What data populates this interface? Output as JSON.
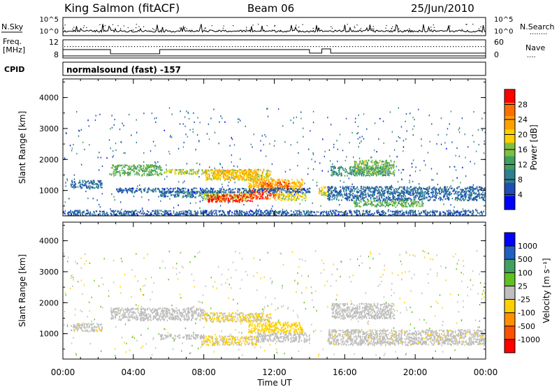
{
  "header": {
    "station": "King Salmon (fitACF)",
    "beam": "Beam 06",
    "date": "25/Jun/2010"
  },
  "noise_panel": {
    "left_label": "N.Sky",
    "left_ticks": [
      "10^5",
      "10^0"
    ],
    "right_ticks": [
      "10^5",
      "10^0"
    ],
    "right_label": "N.Search",
    "right_dots": "........"
  },
  "freq_panel": {
    "left_label_1": "Freq.",
    "left_label_2": "[MHz]",
    "left_ticks": [
      "12",
      "8"
    ],
    "right_ticks": [
      "60",
      "0"
    ],
    "right_label": "Nave",
    "right_dots": "...."
  },
  "cpid_panel": {
    "label": "CPID",
    "text": "normalsound (fast) -157"
  },
  "x_axis": {
    "label": "Time UT",
    "ticks": [
      "00:00",
      "04:00",
      "08:00",
      "12:00",
      "16:00",
      "20:00",
      "00:00"
    ]
  },
  "colors": {
    "power_scale": [
      "#0000ff",
      "#1f4fb4",
      "#2f7f8f",
      "#3f9f5f",
      "#7fbf3f",
      "#ffcf00",
      "#ff9f00",
      "#ff6f00",
      "#ff0000"
    ],
    "velocity_scale": [
      "#0000ff",
      "#2060c0",
      "#40a060",
      "#60c020",
      "#bebebe",
      "#ffd000",
      "#ff9000",
      "#ff5000",
      "#ff0000"
    ]
  },
  "chart_data": [
    {
      "type": "heatmap",
      "title": "",
      "xlabel": "Time UT",
      "ylabel": "Slant Range [km]",
      "xlim": [
        0,
        24
      ],
      "ylim": [
        180,
        4600
      ],
      "y_ticks": [
        1000,
        2000,
        3000,
        4000
      ],
      "colorbar": {
        "label": "Power [dB]",
        "ticks": [
          "28",
          "24",
          "20",
          "16",
          "12",
          "8",
          "4"
        ],
        "range": [
          0,
          30
        ]
      },
      "regions": [
        {
          "t": [
            0.4,
            2.2
          ],
          "r": [
            1100,
            1350
          ],
          "value": 7
        },
        {
          "t": [
            2.7,
            5.6
          ],
          "r": [
            1500,
            1850
          ],
          "value": 13
        },
        {
          "t": [
            5.7,
            8.2
          ],
          "r": [
            1550,
            1700
          ],
          "value": 16
        },
        {
          "t": [
            8.0,
            11.8
          ],
          "r": [
            1350,
            1700
          ],
          "value": 18
        },
        {
          "t": [
            8.5,
            11.0
          ],
          "r": [
            1450,
            1700
          ],
          "value": 20
        },
        {
          "t": [
            10.5,
            13.6
          ],
          "r": [
            1050,
            1400
          ],
          "value": 20
        },
        {
          "t": [
            11.2,
            12.8
          ],
          "r": [
            1050,
            1300
          ],
          "value": 25
        },
        {
          "t": [
            5.5,
            8.8
          ],
          "r": [
            800,
            1000
          ],
          "value": 8
        },
        {
          "t": [
            7.8,
            10.5
          ],
          "r": [
            700,
            950
          ],
          "value": 16
        },
        {
          "t": [
            8.2,
            10.8
          ],
          "r": [
            650,
            900
          ],
          "value": 28
        },
        {
          "t": [
            10.5,
            12.3
          ],
          "r": [
            750,
            1050
          ],
          "value": 26
        },
        {
          "t": [
            12.0,
            13.8
          ],
          "r": [
            700,
            950
          ],
          "value": 17
        },
        {
          "t": [
            14.5,
            15.2
          ],
          "r": [
            850,
            1150
          ],
          "value": 18
        },
        {
          "t": [
            15.2,
            18.5
          ],
          "r": [
            1500,
            1800
          ],
          "value": 10
        },
        {
          "t": [
            16.5,
            18.8
          ],
          "r": [
            1550,
            2000
          ],
          "value": 14
        },
        {
          "t": [
            15.0,
            24.0
          ],
          "r": [
            700,
            1150
          ],
          "value": 7
        },
        {
          "t": [
            16.5,
            20.5
          ],
          "r": [
            500,
            700
          ],
          "value": 13
        },
        {
          "t": [
            3.0,
            14.0
          ],
          "r": [
            950,
            1100
          ],
          "value": 6
        },
        {
          "t": [
            0.0,
            24.0
          ],
          "r": [
            180,
            380
          ],
          "value": 6
        }
      ]
    },
    {
      "type": "heatmap",
      "title": "",
      "xlabel": "Time UT",
      "ylabel": "Slant Range [km]",
      "xlim": [
        0,
        24
      ],
      "ylim": [
        180,
        4600
      ],
      "y_ticks": [
        1000,
        2000,
        3000,
        4000
      ],
      "colorbar": {
        "label": "Velocity [m s⁻¹]",
        "ticks": [
          "1000",
          "500",
          "100",
          "25",
          "-25",
          "-100",
          "-500",
          "-1000"
        ],
        "range": [
          -1200,
          1200
        ]
      },
      "regions": [
        {
          "t": [
            2.7,
            8.0
          ],
          "r": [
            1450,
            1850
          ],
          "value": 0
        },
        {
          "t": [
            8.0,
            11.8
          ],
          "r": [
            1400,
            1700
          ],
          "value": -150
        },
        {
          "t": [
            10.5,
            13.6
          ],
          "r": [
            1050,
            1400
          ],
          "value": -300
        },
        {
          "t": [
            7.8,
            11.0
          ],
          "r": [
            650,
            950
          ],
          "value": -150
        },
        {
          "t": [
            5.5,
            8.0
          ],
          "r": [
            850,
            1000
          ],
          "value": 0
        },
        {
          "t": [
            11.0,
            14.0
          ],
          "r": [
            750,
            1050
          ],
          "value": 0
        },
        {
          "t": [
            15.2,
            18.8
          ],
          "r": [
            1500,
            2000
          ],
          "value": 0
        },
        {
          "t": [
            15.0,
            24.0
          ],
          "r": [
            650,
            1150
          ],
          "value": -50
        },
        {
          "t": [
            0.4,
            2.2
          ],
          "r": [
            1100,
            1350
          ],
          "value": -60
        }
      ]
    }
  ]
}
